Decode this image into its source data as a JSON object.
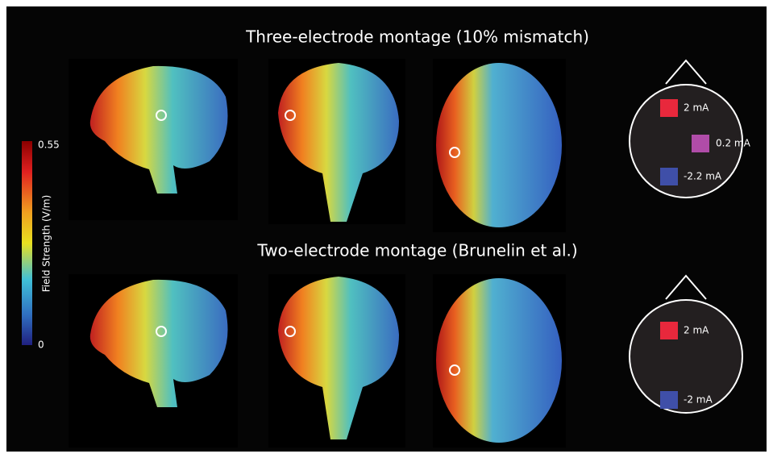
{
  "montages": [
    {
      "title": "Three-electrode montage (10% mismatch)",
      "electrodes": [
        {
          "label": "2 mA"
        },
        {
          "label": "0.2 mA"
        },
        {
          "label": "-2.2 mA"
        }
      ]
    },
    {
      "title": "Two-electrode montage (Brunelin et al.)",
      "electrodes": [
        {
          "label": "2 mA"
        },
        {
          "label": "-2 mA"
        }
      ]
    }
  ],
  "colorbar": {
    "label": "Field Strength (V/m)",
    "ticks": [
      0.55,
      0
    ]
  }
}
